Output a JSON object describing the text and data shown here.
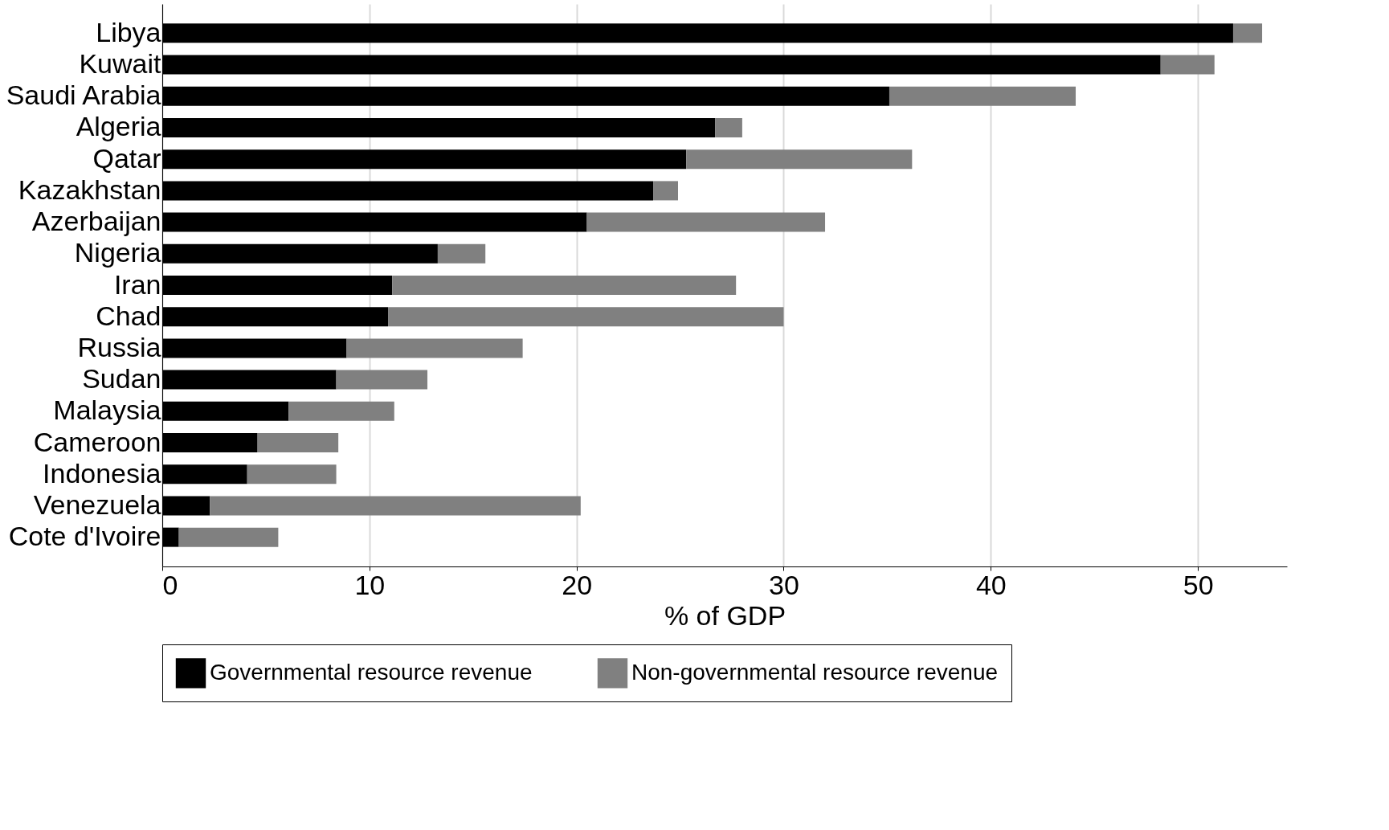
{
  "chart_data": {
    "type": "bar",
    "orientation": "horizontal",
    "stacked": true,
    "xlabel": "% of GDP",
    "categories": [
      "Libya",
      "Kuwait",
      "Saudi Arabia",
      "Algeria",
      "Qatar",
      "Kazakhstan",
      "Azerbaijan",
      "Nigeria",
      "Iran",
      "Chad",
      "Russia",
      "Sudan",
      "Malaysia",
      "Cameroon",
      "Indonesia",
      "Venezuela",
      "Cote d'Ivoire"
    ],
    "series": [
      {
        "name": "Governmental resource revenue",
        "color": "#000000",
        "values": [
          51.7,
          48.2,
          35.1,
          26.7,
          25.3,
          23.7,
          20.5,
          13.3,
          11.1,
          10.9,
          8.9,
          8.4,
          6.1,
          4.6,
          4.1,
          2.3,
          0.8
        ]
      },
      {
        "name": "Non-governmental resource revenue",
        "color": "#808080",
        "values": [
          1.4,
          2.6,
          9.0,
          1.3,
          10.9,
          1.2,
          11.5,
          2.3,
          16.6,
          19.1,
          8.5,
          4.4,
          5.1,
          3.9,
          4.3,
          17.9,
          4.8
        ]
      }
    ],
    "xlim": [
      0,
      54.3
    ],
    "xticks": [
      0,
      10,
      20,
      30,
      40,
      50
    ],
    "grid": "x",
    "legend": "bottom"
  }
}
